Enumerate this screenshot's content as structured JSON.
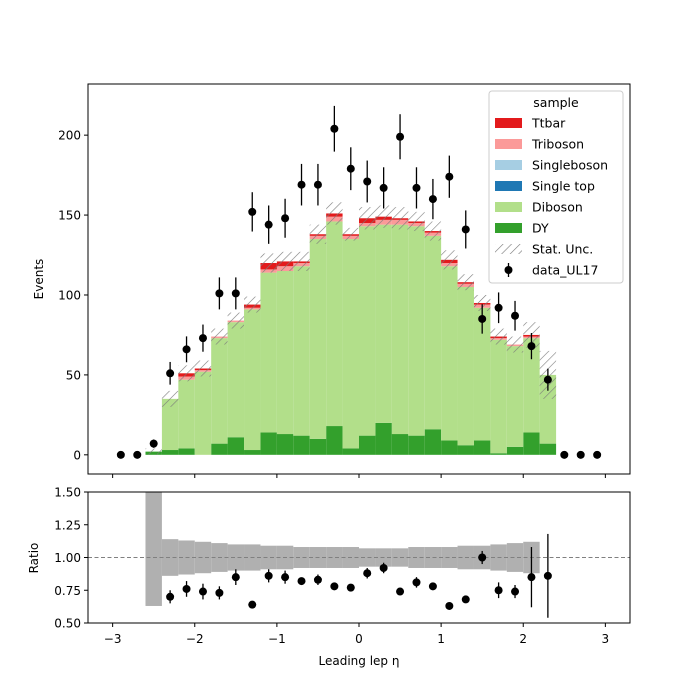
{
  "chart_data": [
    {
      "type": "bar",
      "stacked": true,
      "ylabel": "Events",
      "xlim": [
        -3.3,
        3.3
      ],
      "ylim": [
        -12,
        232
      ],
      "x_ticks": [
        -3,
        -2,
        -1,
        0,
        1,
        2,
        3
      ],
      "y_ticks": [
        0,
        50,
        100,
        150,
        200
      ],
      "bin_edges": [
        -2.6,
        -2.4,
        -2.2,
        -2.0,
        -1.8,
        -1.6,
        -1.4,
        -1.2,
        -1.0,
        -0.8,
        -0.6,
        -0.4,
        -0.2,
        0.0,
        0.2,
        0.4,
        0.6,
        0.8,
        1.0,
        1.2,
        1.4,
        1.6,
        1.8,
        2.0,
        2.2,
        2.4
      ],
      "legend": {
        "title": "sample",
        "placement": "top-right"
      },
      "series": [
        {
          "name": "DY",
          "color": "#33a02c",
          "values": [
            2,
            3,
            4,
            0,
            7,
            11,
            3,
            14,
            13,
            12,
            10,
            18,
            4,
            12,
            20,
            13,
            12,
            16,
            9,
            6,
            9,
            1,
            5,
            14,
            7
          ]
        },
        {
          "name": "Diboson",
          "color": "#b2df8a",
          "values": [
            0,
            32,
            43,
            52,
            66,
            72,
            88,
            100,
            102,
            106,
            125,
            128,
            131,
            131,
            124,
            131,
            131,
            121,
            109,
            99,
            83,
            71,
            63,
            59,
            43
          ]
        },
        {
          "name": "Single top",
          "color": "#1f78b4",
          "values": [
            0,
            0,
            0,
            0,
            0,
            0,
            0,
            0,
            0,
            0,
            0,
            0,
            0,
            0,
            0,
            0,
            0,
            0,
            0,
            0,
            0,
            0,
            0,
            0,
            0
          ]
        },
        {
          "name": "Singleboson",
          "color": "#a6cee3",
          "values": [
            0,
            0,
            0,
            0,
            0,
            0,
            0,
            0,
            0,
            0,
            0,
            0,
            0,
            0,
            0,
            0,
            0,
            0,
            0,
            0,
            0,
            0,
            0,
            0,
            0
          ]
        },
        {
          "name": "Triboson",
          "color": "#fb9a99",
          "values": [
            0,
            0,
            2,
            1,
            1,
            1,
            1,
            2,
            3,
            2,
            2,
            3,
            2,
            2,
            3,
            3,
            2,
            2,
            2,
            2,
            2,
            1,
            1,
            1,
            0
          ]
        },
        {
          "name": "Ttbar",
          "color": "#e31a1c",
          "values": [
            0,
            0,
            2,
            1,
            0,
            0,
            2,
            4,
            3,
            1,
            1,
            2,
            1,
            3,
            2,
            1,
            1,
            1,
            2,
            1,
            1,
            1,
            0,
            1,
            0
          ]
        }
      ],
      "stat_unc": {
        "name": "Stat. Unc.",
        "values": [
          2,
          5,
          5,
          5,
          5,
          5,
          5,
          6,
          6,
          6,
          6,
          7,
          4,
          7,
          7,
          7,
          6,
          6,
          6,
          5,
          5,
          5,
          5,
          8,
          15
        ]
      },
      "data_points": {
        "name": "data_UL17",
        "x": [
          -2.9,
          -2.7,
          -2.5,
          -2.3,
          -2.1,
          -1.9,
          -1.7,
          -1.5,
          -1.3,
          -1.1,
          -0.9,
          -0.7,
          -0.5,
          -0.3,
          -0.1,
          0.1,
          0.3,
          0.5,
          0.7,
          0.9,
          1.1,
          1.3,
          1.5,
          1.7,
          1.9,
          2.1,
          2.3,
          2.5,
          2.7,
          2.9
        ],
        "y": [
          0,
          0,
          7,
          51,
          66,
          73,
          101,
          101,
          152,
          144,
          148,
          169,
          169,
          204,
          179,
          171,
          167,
          199,
          167,
          160,
          174,
          141,
          85,
          92,
          87,
          68,
          47,
          0,
          0,
          0
        ],
        "err": [
          0,
          0,
          2.6,
          7.1,
          8.1,
          8.5,
          10,
          10,
          12.3,
          12,
          12.2,
          13,
          13,
          14.3,
          13.4,
          13.1,
          12.9,
          14.1,
          12.9,
          12.6,
          13.2,
          11.9,
          9.2,
          9.6,
          9.3,
          8.2,
          6.9,
          0,
          0,
          0
        ]
      }
    },
    {
      "type": "scatter",
      "xlabel": "Leading lep η",
      "ylabel": "Ratio",
      "xlim": [
        -3.3,
        3.3
      ],
      "ylim": [
        0.5,
        1.5
      ],
      "x_ticks": [
        -3,
        -2,
        -1,
        0,
        1,
        2,
        3
      ],
      "x_tick_labels": [
        "−3",
        "−2",
        "−1",
        "0",
        "1",
        "2",
        "3"
      ],
      "y_ticks": [
        0.5,
        0.75,
        1.0,
        1.25,
        1.5
      ],
      "y_tick_labels": [
        "0.50",
        "0.75",
        "1.00",
        "1.25",
        "1.50"
      ],
      "reference_line": 1.0,
      "unc_band": {
        "bin_edges": [
          -2.6,
          -2.4,
          -2.2,
          -2.0,
          -1.8,
          -1.6,
          -1.4,
          -1.2,
          -1.0,
          -0.8,
          -0.6,
          -0.4,
          -0.2,
          0.0,
          0.2,
          0.4,
          0.6,
          0.8,
          1.0,
          1.2,
          1.4,
          1.6,
          1.8,
          2.0,
          2.2
        ],
        "low": [
          0.63,
          0.86,
          0.87,
          0.88,
          0.89,
          0.9,
          0.9,
          0.91,
          0.91,
          0.92,
          0.92,
          0.92,
          0.92,
          0.93,
          0.93,
          0.93,
          0.92,
          0.92,
          0.92,
          0.91,
          0.91,
          0.9,
          0.89,
          0.88
        ],
        "high": [
          1.5,
          1.14,
          1.13,
          1.12,
          1.11,
          1.1,
          1.1,
          1.09,
          1.09,
          1.08,
          1.08,
          1.08,
          1.08,
          1.07,
          1.07,
          1.07,
          1.08,
          1.08,
          1.08,
          1.09,
          1.09,
          1.1,
          1.11,
          1.12
        ]
      },
      "points": {
        "x": [
          -2.3,
          -2.1,
          -1.9,
          -1.7,
          -1.5,
          -1.3,
          -1.1,
          -0.9,
          -0.7,
          -0.5,
          -0.3,
          -0.1,
          0.1,
          0.3,
          0.5,
          0.7,
          0.9,
          1.1,
          1.3,
          1.5,
          1.7,
          1.9,
          2.1,
          2.3
        ],
        "y": [
          0.7,
          0.76,
          0.74,
          0.73,
          0.85,
          0.64,
          0.86,
          0.85,
          0.82,
          0.83,
          0.78,
          0.77,
          0.88,
          0.92,
          0.74,
          0.81,
          0.78,
          0.63,
          0.68,
          1.0,
          0.75,
          0.74,
          0.85,
          0.86
        ],
        "err": [
          0.05,
          0.06,
          0.06,
          0.05,
          0.06,
          0.0,
          0.05,
          0.05,
          0.0,
          0.04,
          0.0,
          0.0,
          0.04,
          0.04,
          0.0,
          0.04,
          0.0,
          0.0,
          0.0,
          0.05,
          0.06,
          0.05,
          0.23,
          0.32
        ]
      }
    }
  ]
}
